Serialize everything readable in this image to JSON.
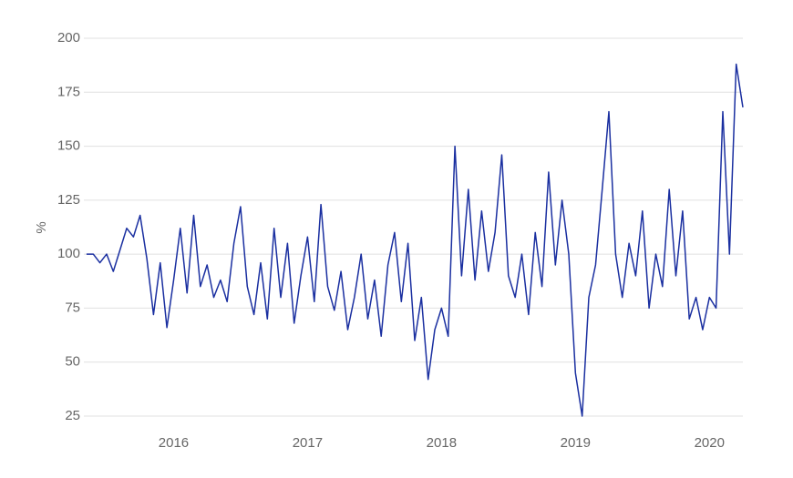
{
  "chart_data": {
    "type": "line",
    "y_label": "%",
    "x": [
      2015.35,
      2015.4,
      2015.45,
      2015.5,
      2015.55,
      2015.6,
      2015.65,
      2015.7,
      2015.75,
      2015.8,
      2015.85,
      2015.9,
      2015.95,
      2016.0,
      2016.05,
      2016.1,
      2016.15,
      2016.2,
      2016.25,
      2016.3,
      2016.35,
      2016.4,
      2016.45,
      2016.5,
      2016.55,
      2016.6,
      2016.65,
      2016.7,
      2016.75,
      2016.8,
      2016.85,
      2016.9,
      2016.95,
      2017.0,
      2017.05,
      2017.1,
      2017.15,
      2017.2,
      2017.25,
      2017.3,
      2017.35,
      2017.4,
      2017.45,
      2017.5,
      2017.55,
      2017.6,
      2017.65,
      2017.7,
      2017.75,
      2017.8,
      2017.85,
      2017.9,
      2017.95,
      2018.0,
      2018.05,
      2018.1,
      2018.15,
      2018.2,
      2018.25,
      2018.3,
      2018.35,
      2018.4,
      2018.45,
      2018.5,
      2018.55,
      2018.6,
      2018.65,
      2018.7,
      2018.75,
      2018.8,
      2018.85,
      2018.9,
      2018.95,
      2019.0,
      2019.05,
      2019.1,
      2019.15,
      2019.2,
      2019.25,
      2019.3,
      2019.35,
      2019.4,
      2019.45,
      2019.5,
      2019.55,
      2019.6,
      2019.65,
      2019.7,
      2019.75,
      2019.8,
      2019.85,
      2019.9,
      2019.95,
      2020.0,
      2020.05,
      2020.1,
      2020.15,
      2020.2,
      2020.25
    ],
    "series": [
      {
        "color": "#1a2fa0",
        "values": [
          100,
          100,
          96,
          100,
          92,
          102,
          112,
          108,
          118,
          98,
          72,
          96,
          66,
          88,
          112,
          82,
          118,
          85,
          95,
          80,
          88,
          78,
          105,
          122,
          85,
          72,
          96,
          70,
          112,
          80,
          105,
          68,
          90,
          108,
          78,
          123,
          85,
          74,
          92,
          65,
          80,
          100,
          70,
          88,
          62,
          95,
          110,
          78,
          105,
          60,
          80,
          42,
          65,
          75,
          62,
          150,
          90,
          130,
          88,
          120,
          92,
          110,
          146,
          90,
          80,
          100,
          72,
          110,
          85,
          138,
          95,
          125,
          100,
          45,
          25,
          80,
          95,
          130,
          166,
          100,
          80,
          105,
          90,
          120,
          75,
          100,
          85,
          130,
          90,
          120,
          70,
          80,
          65,
          80,
          75,
          166,
          100,
          188,
          168
        ]
      }
    ],
    "xlim": [
      2015.33,
      2020.25
    ],
    "xticks": [
      2016,
      2017,
      2018,
      2019,
      2020
    ],
    "ylim": [
      25,
      200
    ],
    "yticks": [
      25,
      50,
      75,
      100,
      125,
      150,
      175,
      200
    ],
    "grid": true
  }
}
